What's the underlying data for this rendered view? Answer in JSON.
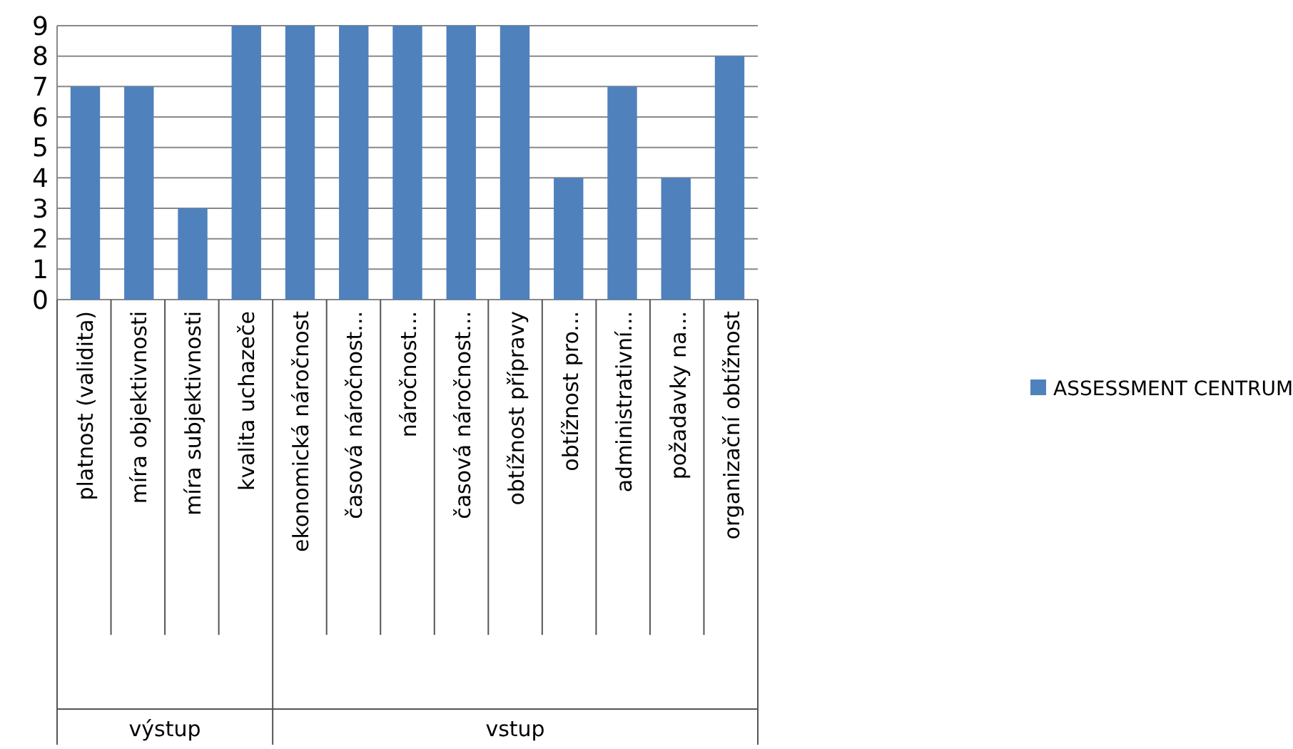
{
  "chart_data": {
    "type": "bar",
    "categories": [
      "platnost (validita)",
      "míra objektivnosti",
      "míra subjektivnosti",
      "kvalita uchazeče",
      "ekonomická náročnost",
      "časová náročnost...",
      "náročnost...",
      "časová náročnost...",
      "obtížnost přípravy",
      "obtížnost pro...",
      "administrativní...",
      "požadavky na...",
      "organizační obtížnost"
    ],
    "series": [
      {
        "name": "ASSESSMENT CENTRUM",
        "color": "#4f81bd",
        "values": [
          7,
          7,
          3,
          9,
          9,
          9,
          9,
          9,
          9,
          4,
          7,
          4,
          8
        ]
      }
    ],
    "annotations": [
      "výstup",
      "vstup"
    ],
    "ylim": [
      0,
      9
    ],
    "yticks": [
      0,
      1,
      2,
      3,
      4,
      5,
      6,
      7,
      8,
      9
    ],
    "grid": "y",
    "legend": "right"
  }
}
